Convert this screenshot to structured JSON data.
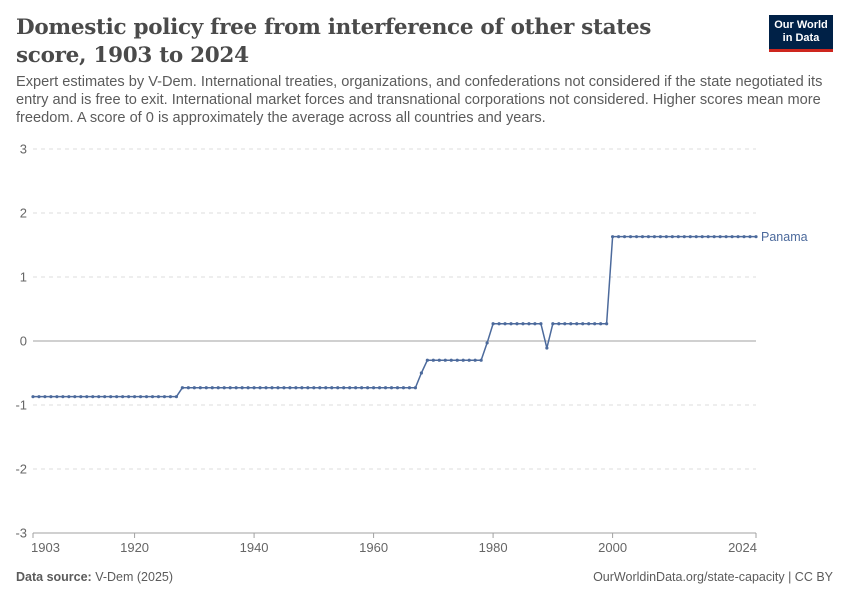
{
  "header": {
    "title": "Domestic policy free from interference of other states score, 1903 to 2024",
    "subtitle": "Expert estimates by V-Dem. International treaties, organizations, and confederations not considered if the state negotiated its entry and is free to exit. International market forces and transnational corporations not considered. Higher scores mean more freedom. A score of 0 is approximately the average across all countries and years."
  },
  "logo": {
    "line1": "Our World",
    "line2": "in Data"
  },
  "footer": {
    "source_label": "Data source:",
    "source_text": "V-Dem (2025)",
    "url_text": "OurWorldinData.org/state-capacity | CC BY"
  },
  "colors": {
    "series": "#4c6a9c",
    "grid": "#dddddd",
    "zero_line": "#a1a1a1",
    "axis": "#666666"
  },
  "chart_data": {
    "type": "line",
    "title": "Domestic policy free from interference of other states score, 1903 to 2024",
    "xlim": [
      1903,
      2024
    ],
    "ylim": [
      -3,
      3
    ],
    "x_ticks": [
      1903,
      1920,
      1940,
      1960,
      1980,
      2000,
      2024
    ],
    "y_ticks": [
      -3,
      -2,
      -1,
      0,
      1,
      2,
      3
    ],
    "grid": "horizontal dashed",
    "legend": "line-end label",
    "series": [
      {
        "name": "Panama",
        "points": [
          [
            1903,
            -0.87
          ],
          [
            1904,
            -0.87
          ],
          [
            1905,
            -0.87
          ],
          [
            1906,
            -0.87
          ],
          [
            1907,
            -0.87
          ],
          [
            1908,
            -0.87
          ],
          [
            1909,
            -0.87
          ],
          [
            1910,
            -0.87
          ],
          [
            1911,
            -0.87
          ],
          [
            1912,
            -0.87
          ],
          [
            1913,
            -0.87
          ],
          [
            1914,
            -0.87
          ],
          [
            1915,
            -0.87
          ],
          [
            1916,
            -0.87
          ],
          [
            1917,
            -0.87
          ],
          [
            1918,
            -0.87
          ],
          [
            1919,
            -0.87
          ],
          [
            1920,
            -0.87
          ],
          [
            1921,
            -0.87
          ],
          [
            1922,
            -0.87
          ],
          [
            1923,
            -0.87
          ],
          [
            1924,
            -0.87
          ],
          [
            1925,
            -0.87
          ],
          [
            1926,
            -0.87
          ],
          [
            1927,
            -0.87
          ],
          [
            1928,
            -0.73
          ],
          [
            1929,
            -0.73
          ],
          [
            1930,
            -0.73
          ],
          [
            1931,
            -0.73
          ],
          [
            1932,
            -0.73
          ],
          [
            1933,
            -0.73
          ],
          [
            1934,
            -0.73
          ],
          [
            1935,
            -0.73
          ],
          [
            1936,
            -0.73
          ],
          [
            1937,
            -0.73
          ],
          [
            1938,
            -0.73
          ],
          [
            1939,
            -0.73
          ],
          [
            1940,
            -0.73
          ],
          [
            1941,
            -0.73
          ],
          [
            1942,
            -0.73
          ],
          [
            1943,
            -0.73
          ],
          [
            1944,
            -0.73
          ],
          [
            1945,
            -0.73
          ],
          [
            1946,
            -0.73
          ],
          [
            1947,
            -0.73
          ],
          [
            1948,
            -0.73
          ],
          [
            1949,
            -0.73
          ],
          [
            1950,
            -0.73
          ],
          [
            1951,
            -0.73
          ],
          [
            1952,
            -0.73
          ],
          [
            1953,
            -0.73
          ],
          [
            1954,
            -0.73
          ],
          [
            1955,
            -0.73
          ],
          [
            1956,
            -0.73
          ],
          [
            1957,
            -0.73
          ],
          [
            1958,
            -0.73
          ],
          [
            1959,
            -0.73
          ],
          [
            1960,
            -0.73
          ],
          [
            1961,
            -0.73
          ],
          [
            1962,
            -0.73
          ],
          [
            1963,
            -0.73
          ],
          [
            1964,
            -0.73
          ],
          [
            1965,
            -0.73
          ],
          [
            1966,
            -0.73
          ],
          [
            1967,
            -0.73
          ],
          [
            1968,
            -0.5
          ],
          [
            1969,
            -0.3
          ],
          [
            1970,
            -0.3
          ],
          [
            1971,
            -0.3
          ],
          [
            1972,
            -0.3
          ],
          [
            1973,
            -0.3
          ],
          [
            1974,
            -0.3
          ],
          [
            1975,
            -0.3
          ],
          [
            1976,
            -0.3
          ],
          [
            1977,
            -0.3
          ],
          [
            1978,
            -0.3
          ],
          [
            1979,
            -0.03
          ],
          [
            1980,
            0.27
          ],
          [
            1981,
            0.27
          ],
          [
            1982,
            0.27
          ],
          [
            1983,
            0.27
          ],
          [
            1984,
            0.27
          ],
          [
            1985,
            0.27
          ],
          [
            1986,
            0.27
          ],
          [
            1987,
            0.27
          ],
          [
            1988,
            0.27
          ],
          [
            1989,
            -0.11
          ],
          [
            1990,
            0.27
          ],
          [
            1991,
            0.27
          ],
          [
            1992,
            0.27
          ],
          [
            1993,
            0.27
          ],
          [
            1994,
            0.27
          ],
          [
            1995,
            0.27
          ],
          [
            1996,
            0.27
          ],
          [
            1997,
            0.27
          ],
          [
            1998,
            0.27
          ],
          [
            1999,
            0.27
          ],
          [
            2000,
            1.63
          ],
          [
            2001,
            1.63
          ],
          [
            2002,
            1.63
          ],
          [
            2003,
            1.63
          ],
          [
            2004,
            1.63
          ],
          [
            2005,
            1.63
          ],
          [
            2006,
            1.63
          ],
          [
            2007,
            1.63
          ],
          [
            2008,
            1.63
          ],
          [
            2009,
            1.63
          ],
          [
            2010,
            1.63
          ],
          [
            2011,
            1.63
          ],
          [
            2012,
            1.63
          ],
          [
            2013,
            1.63
          ],
          [
            2014,
            1.63
          ],
          [
            2015,
            1.63
          ],
          [
            2016,
            1.63
          ],
          [
            2017,
            1.63
          ],
          [
            2018,
            1.63
          ],
          [
            2019,
            1.63
          ],
          [
            2020,
            1.63
          ],
          [
            2021,
            1.63
          ],
          [
            2022,
            1.63
          ],
          [
            2023,
            1.63
          ],
          [
            2024,
            1.63
          ]
        ]
      }
    ]
  }
}
